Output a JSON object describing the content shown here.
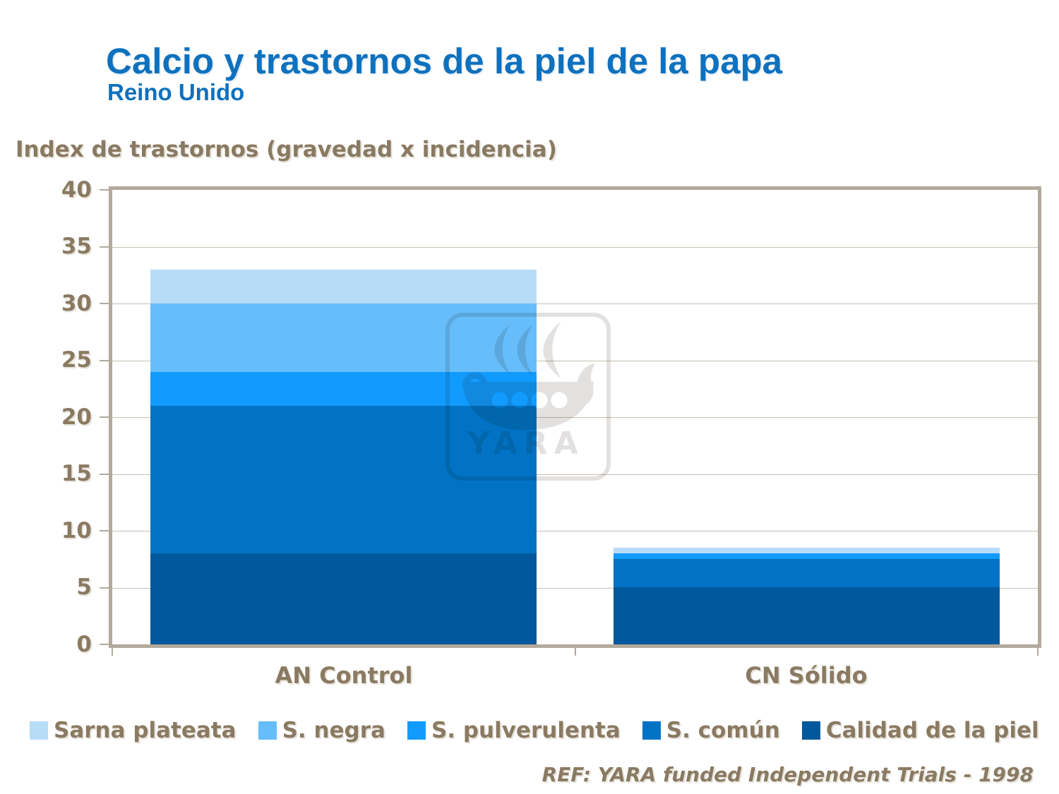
{
  "header": {
    "title": "Calcio y trastornos de la piel de la papa",
    "subtitle": "Reino Unido"
  },
  "axis_title": "Index de trastornos (gravedad x incidencia)",
  "watermark": {
    "label": "YARA",
    "icon": "viking-ship-logo"
  },
  "footer": {
    "ref": "REF: YARA funded Independent Trials - 1998"
  },
  "colors": {
    "title_blue": "#0e71be",
    "text_brown": "#8a7a62",
    "gridline": "#c8bfb2",
    "frame": "#b3a99c",
    "watermark_gray": "#e3e1e0",
    "background": "#ffffff"
  },
  "chart_data": {
    "type": "bar",
    "stacked": true,
    "title": "Calcio y trastornos de la piel de la papa",
    "subtitle": "Reino Unido",
    "ylabel": "Index de trastornos (gravedad x incidencia)",
    "xlabel": "",
    "categories": [
      "AN Control",
      "CN Sólido"
    ],
    "series": [
      {
        "name": "Sarna plateata",
        "color": "#b7dcf8",
        "values": [
          3,
          0.5
        ]
      },
      {
        "name": "S. negra",
        "color": "#66bdfa",
        "values": [
          6,
          0
        ]
      },
      {
        "name": "S. pulverulenta",
        "color": "#129bfe",
        "values": [
          3,
          0.5
        ]
      },
      {
        "name": "S. común",
        "color": "#0273c4",
        "values": [
          13,
          2.5
        ]
      },
      {
        "name": "Calidad de la piel",
        "color": "#01589c",
        "values": [
          8,
          5
        ]
      }
    ],
    "stack_order_bottom_to_top": [
      "Calidad de la piel",
      "S. común",
      "S. pulverulenta",
      "S. negra",
      "Sarna plateata"
    ],
    "totals": [
      33,
      8.5
    ],
    "ylim": [
      0,
      40
    ],
    "ytick_step": 5,
    "yticks": [
      0,
      5,
      10,
      15,
      20,
      25,
      30,
      35,
      40
    ],
    "grid": true,
    "legend_position": "bottom",
    "source": "REF: YARA funded Independent Trials - 1998"
  }
}
